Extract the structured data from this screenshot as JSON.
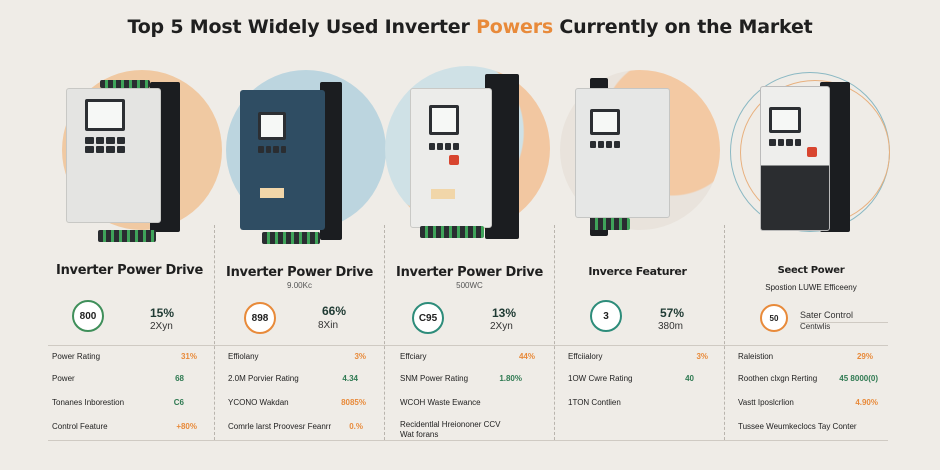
{
  "title": {
    "pre": "Top 5 Most Widely Used Inverter ",
    "accent": "Powers",
    "post": " Currently on the Market"
  },
  "columns": [
    {
      "heading": "Inverter Power Drive",
      "sub": "",
      "gauge": "800",
      "pct": "15%",
      "unit": "2Xyn",
      "rows": [
        {
          "label": "Power Rating",
          "value": "31%"
        },
        {
          "label": "Power",
          "value": "68"
        },
        {
          "label": "Tonanes Inborestion",
          "value": "C6"
        },
        {
          "label": "Control Feature",
          "value": "+80%"
        }
      ]
    },
    {
      "heading": "Inverter Power Drive",
      "sub": "9.00Kc",
      "gauge": "898",
      "pct": "66%",
      "unit": "8Xin",
      "rows": [
        {
          "label": "Effiolany",
          "value": "3%"
        },
        {
          "label": "2.0M Porvier Rating",
          "value": "4.34"
        },
        {
          "label": "YCONO Wakdan",
          "value": "8085%"
        },
        {
          "label": "Comrle larst Proovesr Feanrr",
          "value": "0.%"
        }
      ]
    },
    {
      "heading": "Inverter Power Drive",
      "sub": "500WC",
      "gauge": "C95",
      "pct": "13%",
      "unit": "2Xyn",
      "rows": [
        {
          "label": "Effciary",
          "value": "44%"
        },
        {
          "label": "SNM Power Rating",
          "value": "1.80%"
        },
        {
          "label": "WCOH Waste Ewance",
          "value": ""
        },
        {
          "label": "Recidentlal Hreiononer CCV",
          "value": ""
        },
        {
          "label": "Wat forans",
          "value": ""
        }
      ]
    },
    {
      "heading": "Inverce Featurer",
      "sub": "",
      "gauge": "3",
      "pct": "57%",
      "unit": "380m",
      "rows": [
        {
          "label": "Effciialory",
          "value": "3%"
        },
        {
          "label": "1OW Cwre Rating",
          "value": "40"
        },
        {
          "label": "1TON Contlien",
          "value": ""
        },
        {
          "label": "",
          "value": ""
        }
      ]
    },
    {
      "heading": "Seect Power",
      "sub": "Spostion LUWE Efficeeny",
      "gauge": "50",
      "pct": "",
      "unit": "Sater Control",
      "unit2": "Centwlis",
      "rows": [
        {
          "label": "Raleistion",
          "value": "29%"
        },
        {
          "label": "Roothen clxgn Rerting",
          "value": "45 8000(0)"
        },
        {
          "label": "Vastt Iposlcrlion",
          "value": "4.90%"
        },
        {
          "label": "Tussee Weumkeclocs Tay Conter",
          "value": ""
        }
      ]
    }
  ],
  "colors": {
    "accent": "#e88a3a",
    "green": "#2f7a52"
  }
}
